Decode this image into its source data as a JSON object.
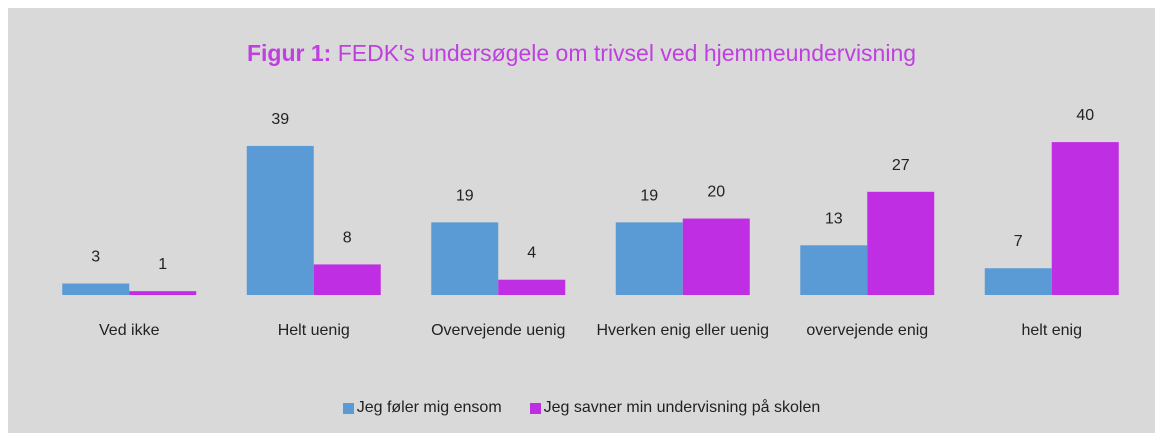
{
  "chart_data": {
    "type": "bar",
    "title": {
      "label": "Figur 1:",
      "text": "FEDK's undersøgele om trivsel ved hjemmeundervisning"
    },
    "categories": [
      "Ved ikke",
      "Helt uenig",
      "Overvejende uenig",
      "Hverken enig eller uenig",
      "overvejende enig",
      "helt enig"
    ],
    "series": [
      {
        "name": "Jeg føler mig ensom",
        "color": "#5b9bd5",
        "values": [
          3,
          39,
          19,
          19,
          13,
          7
        ]
      },
      {
        "name": "Jeg savner min undervisning på skolen",
        "color": "#bf2ee3",
        "values": [
          1,
          8,
          4,
          20,
          27,
          40
        ]
      }
    ],
    "ylim": [
      0,
      45
    ],
    "legend": "bottom"
  }
}
